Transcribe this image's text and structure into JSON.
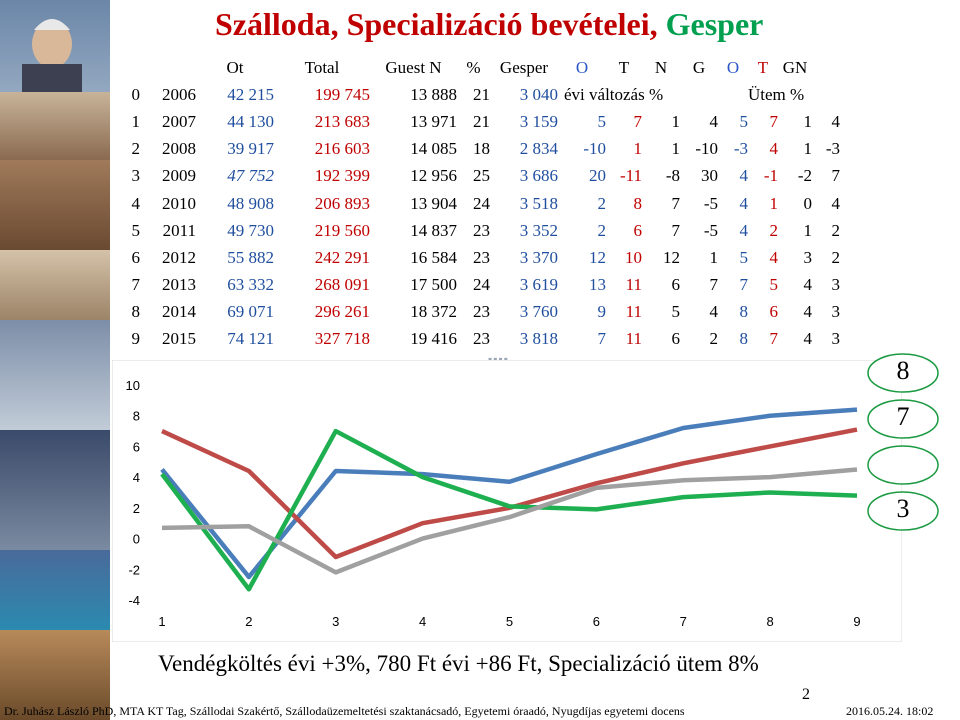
{
  "title": {
    "main": "Szálloda, Specializáció bevételei,",
    "accent": "Gesper"
  },
  "colors": {
    "title": "#c00000",
    "accent": "#00a050",
    "blue": "#4a7ebb",
    "red": "#be4b48",
    "green": "#1eb050",
    "gray": "#a0a0a0"
  },
  "table": {
    "headers": [
      "",
      "",
      "Ot",
      "Total",
      "Guest N",
      "%",
      "Gesper",
      "O",
      "T",
      "N",
      "G",
      "O",
      "T",
      "GN"
    ],
    "sub_label_1": "évi változás %",
    "sub_label_2": "Ütem %",
    "rows": [
      {
        "idx": "0",
        "year": "2006",
        "ot": "42 215",
        "total": "199 745",
        "guest": "13 888",
        "pct": "21",
        "gesper": "3 040",
        "o": "",
        "t": "",
        "n": "",
        "g": "",
        "o2": "",
        "t2": "",
        "gn": ""
      },
      {
        "idx": "1",
        "year": "2007",
        "ot": "44 130",
        "total": "213 683",
        "guest": "13 971",
        "pct": "21",
        "gesper": "3 159",
        "o": "5",
        "t": "7",
        "n": "1",
        "g": "4",
        "o2": "5",
        "t2": "7",
        "gn": "1",
        "extra": "4"
      },
      {
        "idx": "2",
        "year": "2008",
        "ot": "39 917",
        "total": "216 603",
        "guest": "14 085",
        "pct": "18",
        "gesper": "2 834",
        "o": "-10",
        "t": "1",
        "n": "1",
        "g": "-10",
        "o2": "-3",
        "t2": "4",
        "gn": "1",
        "extra": "-3"
      },
      {
        "idx": "3",
        "year": "2009",
        "ot": "47 752",
        "total": "192 399",
        "guest": "12 956",
        "pct": "25",
        "gesper": "3 686",
        "o": "20",
        "t": "-11",
        "n": "-8",
        "g": "30",
        "o2": "4",
        "t2": "-1",
        "gn": "-2",
        "extra": "7"
      },
      {
        "idx": "4",
        "year": "2010",
        "ot": "48 908",
        "total": "206 893",
        "guest": "13 904",
        "pct": "24",
        "gesper": "3 518",
        "o": "2",
        "t": "8",
        "n": "7",
        "g": "-5",
        "o2": "4",
        "t2": "1",
        "gn": "0",
        "extra": "4"
      },
      {
        "idx": "5",
        "year": "2011",
        "ot": "49 730",
        "total": "219 560",
        "guest": "14 837",
        "pct": "23",
        "gesper": "3 352",
        "o": "2",
        "t": "6",
        "n": "7",
        "g": "-5",
        "o2": "4",
        "t2": "2",
        "gn": "1",
        "extra": "2"
      },
      {
        "idx": "6",
        "year": "2012",
        "ot": "55 882",
        "total": "242 291",
        "guest": "16 584",
        "pct": "23",
        "gesper": "3 370",
        "o": "12",
        "t": "10",
        "n": "12",
        "g": "1",
        "o2": "5",
        "t2": "4",
        "gn": "3",
        "extra": "2"
      },
      {
        "idx": "7",
        "year": "2013",
        "ot": "63 332",
        "total": "268 091",
        "guest": "17 500",
        "pct": "24",
        "gesper": "3 619",
        "o": "13",
        "t": "11",
        "n": "6",
        "g": "7",
        "o2": "7",
        "t2": "5",
        "gn": "4",
        "extra": "3"
      },
      {
        "idx": "8",
        "year": "2014",
        "ot": "69 071",
        "total": "296 261",
        "guest": "18 372",
        "pct": "23",
        "gesper": "3 760",
        "o": "9",
        "t": "11",
        "n": "5",
        "g": "4",
        "o2": "8",
        "t2": "6",
        "gn": "4",
        "extra": "3"
      },
      {
        "idx": "9",
        "year": "2015",
        "ot": "74 121",
        "total": "327 718",
        "guest": "19 416",
        "pct": "23",
        "gesper": "3 818",
        "o": "7",
        "t": "11",
        "n": "6",
        "g": "2",
        "o2": "8",
        "t2": "7",
        "gn": "4",
        "extra": "3"
      }
    ]
  },
  "chart_data": {
    "type": "line",
    "x": [
      1,
      2,
      3,
      4,
      5,
      6,
      7,
      8,
      9
    ],
    "x_ticks": [
      "1",
      "2",
      "3",
      "4",
      "5",
      "6",
      "7",
      "8",
      "9"
    ],
    "ylim": [
      -4,
      10
    ],
    "y_ticks": [
      "-4",
      "-2",
      "0",
      "2",
      "4",
      "6",
      "8",
      "10"
    ],
    "grid": false,
    "series": [
      {
        "color": "#4a7ebb",
        "values": [
          4.5,
          -2.5,
          4.4,
          4.2,
          3.7,
          5.5,
          7.2,
          8.0,
          8.4
        ]
      },
      {
        "color": "#be4b48",
        "values": [
          7.0,
          4.4,
          -1.2,
          1.0,
          2.0,
          3.6,
          4.9,
          6.0,
          7.1
        ]
      },
      {
        "color": "#1eb050",
        "values": [
          4.2,
          -3.3,
          7.0,
          4.0,
          2.1,
          1.9,
          2.7,
          3.0,
          2.8
        ]
      },
      {
        "color": "#a0a0a0",
        "values": [
          0.7,
          0.8,
          -2.2,
          0.0,
          1.4,
          3.3,
          3.8,
          4.0,
          4.5
        ]
      }
    ]
  },
  "bubbles": [
    "8",
    "7",
    "",
    "3"
  ],
  "subtitle": "Vendégköltés évi +3%, 780 Ft évi +86 Ft, Specializáció ütem 8%",
  "page_number": "2",
  "footer": {
    "author": "Dr. Juhász László PhD, MTA  KT Tag, Szállodai Szakértő,  Szállodaüzemeltetési szaktanácsadó, Egyetemi óraadó, Nyugdíjas egyetemi docens",
    "date": "2016.05.24. 18:02"
  }
}
